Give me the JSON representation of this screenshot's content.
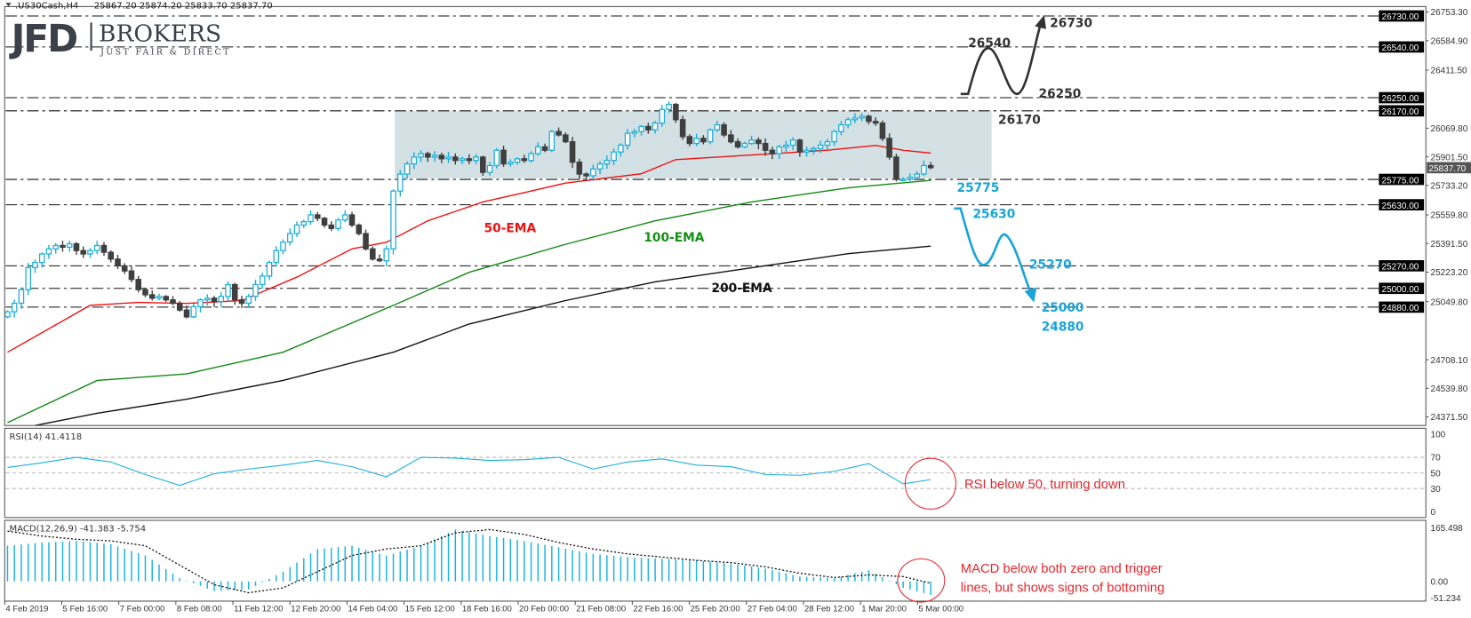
{
  "header": {
    "symbol": ".US30Cash,H4",
    "ohlc": "25867.20 25874.20 25833.70 25837.70",
    "menu_icon": "triangle-down-icon"
  },
  "logo": {
    "main": "JFD",
    "brand": "BROKERS",
    "tagline": "JUST FAIR & DIRECT"
  },
  "colors": {
    "bull": "#1aaed8",
    "bear": "#3f3f3f",
    "ema50": "#ee1111",
    "ema100": "#118811",
    "ema200": "#111111",
    "zone": "#d3e0e4",
    "annotation": "#e8282e",
    "projection_down": "#1aa3d8"
  },
  "chart_data": [
    {
      "type": "candlestick",
      "title": ".US30Cash,H4",
      "last_price": "25837.70",
      "y_tick_labels": [
        "26753.30",
        "26584.90",
        "26411.50",
        "26069.80",
        "25901.50",
        "25733.20",
        "25559.80",
        "25391.50",
        "25223.20",
        "25049.80",
        "24708.10",
        "24539.80",
        "24371.50"
      ],
      "x_tick_labels": [
        "4 Feb 2019",
        "5 Feb 16:00",
        "7 Feb 00:00",
        "8 Feb 08:00",
        "11 Feb 12:00",
        "12 Feb 20:00",
        "14 Feb 04:00",
        "15 Feb 12:00",
        "18 Feb 16:00",
        "20 Feb 00:00",
        "21 Feb 08:00",
        "22 Feb 16:00",
        "25 Feb 20:00",
        "27 Feb 04:00",
        "28 Feb 12:00",
        "1 Mar 20:00",
        "5 Mar 00:00"
      ],
      "closes": [
        24990,
        25040,
        25120,
        25250,
        25280,
        25330,
        25360,
        25380,
        25370,
        25390,
        25350,
        25330,
        25350,
        25380,
        25340,
        25300,
        25260,
        25230,
        25180,
        25120,
        25090,
        25070,
        25080,
        25060,
        25040,
        25000,
        24960,
        25020,
        25060,
        25070,
        25050,
        25080,
        25150,
        25060,
        25040,
        25080,
        25150,
        25200,
        25280,
        25350,
        25400,
        25450,
        25500,
        25520,
        25560,
        25540,
        25500,
        25480,
        25530,
        25560,
        25500,
        25450,
        25360,
        25300,
        25290,
        25360,
        25700,
        25800,
        25860,
        25900,
        25920,
        25900,
        25910,
        25890,
        25900,
        25880,
        25890,
        25880,
        25900,
        25810,
        25850,
        25940,
        25860,
        25870,
        25890,
        25880,
        25920,
        25960,
        25940,
        26050,
        26030,
        25990,
        25870,
        25800,
        25790,
        25830,
        25860,
        25880,
        25930,
        25970,
        26040,
        26050,
        26080,
        26060,
        26100,
        26180,
        26210,
        26120,
        26020,
        25980,
        26010,
        25990,
        26060,
        26090,
        26030,
        25990,
        25960,
        25980,
        26000,
        25980,
        25940,
        25920,
        25960,
        25970,
        26000,
        25930,
        25940,
        25950,
        25970,
        25990,
        26050,
        26090,
        26120,
        26130,
        26140,
        26110,
        26100,
        26010,
        25900,
        25770,
        25770,
        25780,
        25800,
        25850,
        25837.7
      ],
      "ema": [
        {
          "name": "50-EMA",
          "bar_index": [
            0,
            12,
            19,
            26,
            34,
            42,
            50,
            55,
            61,
            69,
            75,
            81,
            92,
            97,
            108,
            119,
            126,
            130,
            134
          ],
          "values": [
            24752,
            25028,
            25045,
            25039,
            25056,
            25194,
            25360,
            25399,
            25525,
            25636,
            25691,
            25747,
            25802,
            25885,
            25912,
            25940,
            25968,
            25940,
            25923
          ]
        },
        {
          "name": "100-EMA",
          "bar_index": [
            0,
            13,
            26,
            40,
            56,
            67,
            81,
            94,
            108,
            122,
            134
          ],
          "values": [
            24338,
            24586,
            24625,
            24752,
            25028,
            25222,
            25387,
            25525,
            25636,
            25719,
            25763
          ]
        },
        {
          "name": "200-EMA",
          "bar_index": [
            4,
            13,
            26,
            40,
            56,
            67,
            81,
            94,
            108,
            122,
            134
          ],
          "values": [
            24321,
            24393,
            24476,
            24586,
            24752,
            24918,
            25056,
            25166,
            25249,
            25332,
            25376
          ]
        }
      ],
      "levels": [
        {
          "value": 26730,
          "label": "26730.00",
          "text": "26730",
          "kind": "target-up"
        },
        {
          "value": 26540,
          "label": "26540.00",
          "text": "26540",
          "kind": "target-up"
        },
        {
          "value": 26250,
          "label": "26250.00",
          "text": "26250",
          "kind": "target-up"
        },
        {
          "value": 26170,
          "label": "26170.00",
          "text": "26170",
          "kind": "resistance"
        },
        {
          "value": 25775,
          "label": "25775.00",
          "text": "25775",
          "kind": "support"
        },
        {
          "value": 25630,
          "label": "25630.00",
          "text": "25630",
          "kind": "target-down"
        },
        {
          "value": 25270,
          "label": "25270.00",
          "text": "25270",
          "kind": "target-down"
        },
        {
          "value": 25000,
          "label": "25000.00",
          "text": "25000",
          "kind": "target-down"
        },
        {
          "value": 24880,
          "label": "24880.00",
          "text": "24880",
          "kind": "target-down"
        }
      ],
      "range_zone": [
        25775,
        26170
      ]
    },
    {
      "type": "line",
      "title": "RSI(14) 41.4118",
      "y_ticks": [
        "100",
        "70",
        "50",
        "30",
        "0"
      ],
      "ylim": [
        0,
        100
      ],
      "levels": [
        70,
        50,
        30
      ],
      "bar_index": [
        0,
        5,
        10,
        15,
        20,
        25,
        30,
        35,
        40,
        45,
        50,
        55,
        60,
        65,
        70,
        75,
        80,
        85,
        90,
        95,
        100,
        105,
        110,
        115,
        120,
        125,
        130,
        134
      ],
      "values": [
        57,
        63,
        70,
        64,
        48,
        34,
        49,
        55,
        60,
        66,
        58,
        45,
        70,
        69,
        66,
        67,
        70,
        55,
        64,
        68,
        60,
        58,
        48,
        47,
        52,
        62,
        36,
        41.4
      ]
    },
    {
      "type": "bar",
      "title": "MACD(12,26,9) -41.383 -5.754",
      "y_ticks": [
        "165.498",
        "0.00",
        "-51.234"
      ],
      "ylim": [
        -51.234,
        165.498
      ],
      "bar_index": [
        0,
        5,
        10,
        15,
        20,
        25,
        30,
        35,
        40,
        45,
        50,
        55,
        60,
        65,
        70,
        75,
        80,
        85,
        90,
        95,
        100,
        105,
        110,
        115,
        120,
        125,
        130,
        134
      ],
      "macd": [
        110,
        120,
        125,
        115,
        80,
        10,
        -30,
        -25,
        30,
        100,
        110,
        80,
        110,
        160,
        140,
        125,
        105,
        85,
        75,
        70,
        65,
        55,
        40,
        15,
        10,
        35,
        -20,
        -41.383
      ],
      "signal": [
        155,
        140,
        130,
        125,
        110,
        50,
        -10,
        -35,
        -20,
        30,
        80,
        100,
        110,
        150,
        160,
        145,
        120,
        100,
        85,
        75,
        65,
        58,
        45,
        25,
        12,
        20,
        15,
        -5.754
      ]
    }
  ],
  "annotations": {
    "ema50": "50-EMA",
    "ema100": "100-EMA",
    "ema200": "200-EMA",
    "rsi_note": "RSI below 50, turning down",
    "macd_note_1": "MACD below both zero and trigger",
    "macd_note_2": "lines, but shows signs of bottoming"
  }
}
